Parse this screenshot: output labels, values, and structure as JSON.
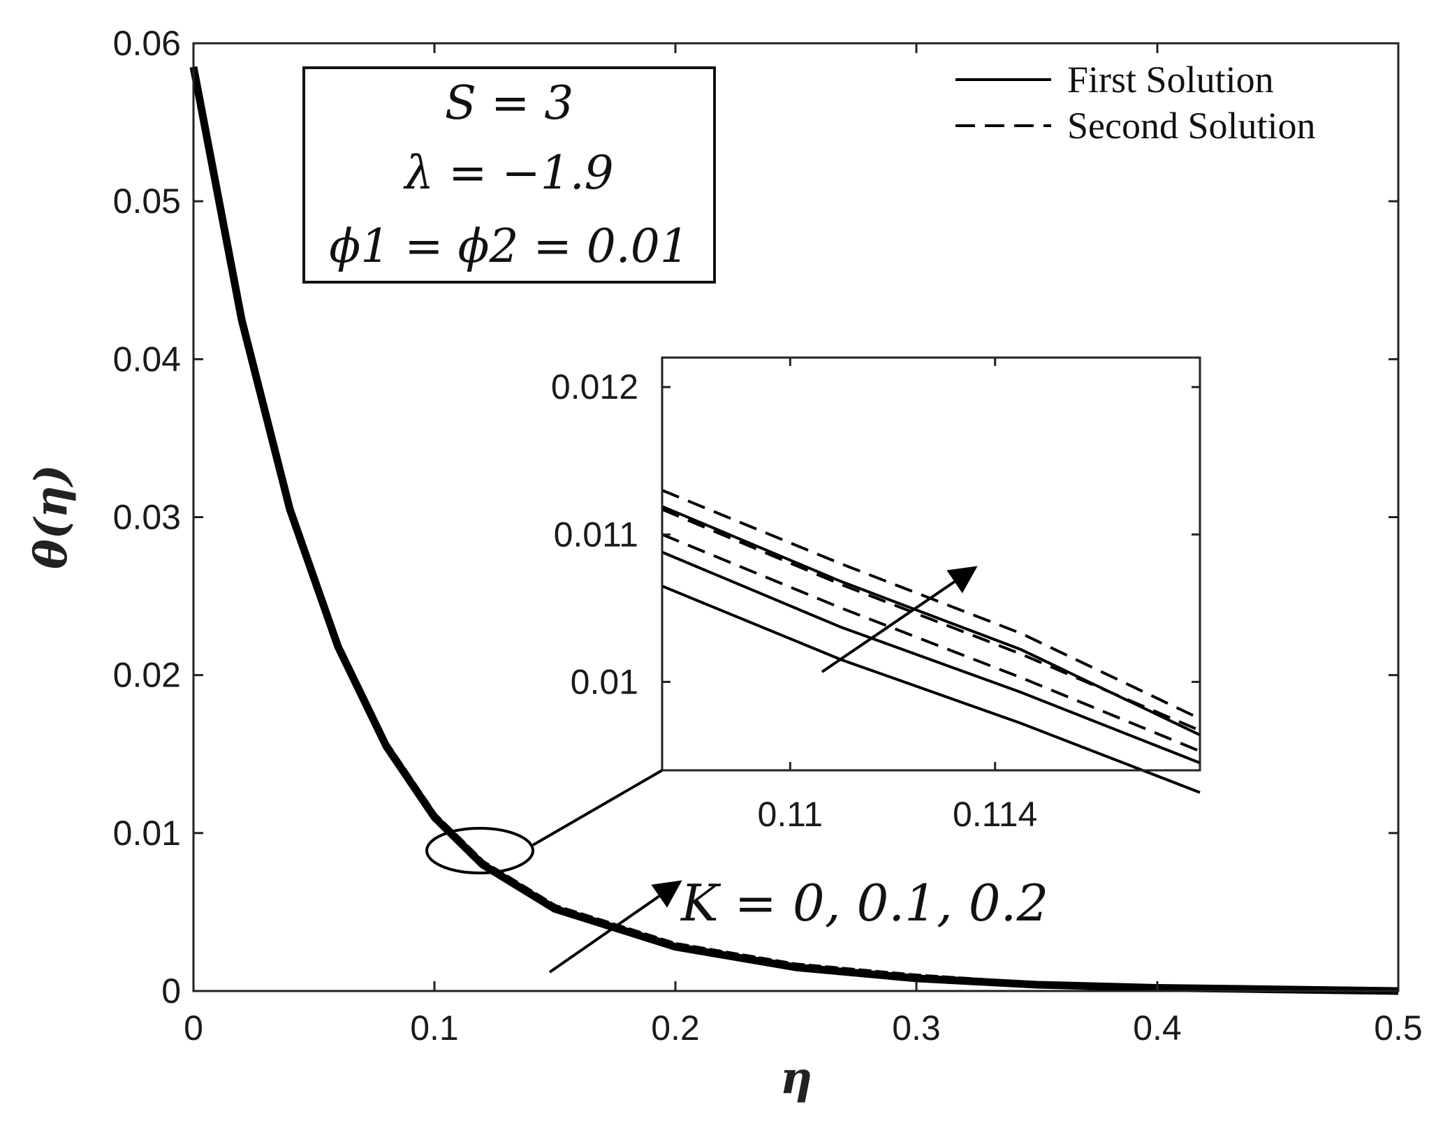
{
  "chart_data": {
    "type": "line",
    "title": "",
    "xlabel": "η",
    "ylabel": "θ(η)",
    "xlim": [
      0,
      0.5
    ],
    "ylim": [
      0,
      0.06
    ],
    "x_ticks": [
      "0",
      "0.1",
      "0.2",
      "0.3",
      "0.4",
      "0.5"
    ],
    "y_ticks": [
      "0",
      "0.01",
      "0.02",
      "0.03",
      "0.04",
      "0.05",
      "0.06"
    ],
    "legend": {
      "placement": "top-right",
      "entries": [
        {
          "label": "First Solution",
          "style": "solid"
        },
        {
          "label": "Second Solution",
          "style": "dashed"
        }
      ]
    },
    "parameter_box": [
      "S = 3",
      "λ = −1.9",
      "ϕ1 = ϕ2 = 0.01"
    ],
    "annotation": "K = 0, 0.1, 0.2",
    "x": [
      0,
      0.02,
      0.04,
      0.06,
      0.08,
      0.1,
      0.12,
      0.15,
      0.2,
      0.25,
      0.3,
      0.35,
      0.4,
      0.45,
      0.5
    ],
    "series": [
      {
        "style": "solid",
        "values": [
          0.0585,
          0.0425,
          0.0305,
          0.0218,
          0.0155,
          0.011,
          0.008,
          0.0052,
          0.0028,
          0.0015,
          0.0008,
          0.0004,
          0.0002,
          0.0001,
          0.0
        ]
      },
      {
        "style": "dashed",
        "values": [
          0.0585,
          0.0426,
          0.0306,
          0.0219,
          0.0156,
          0.0111,
          0.0081,
          0.0053,
          0.0029,
          0.0016,
          0.0009,
          0.0004,
          0.0002,
          0.0001,
          0.0
        ]
      }
    ],
    "inset": {
      "xlim": [
        0.1075,
        0.118
      ],
      "ylim": [
        0.0094,
        0.0122
      ],
      "x_ticks": [
        "0.11",
        "0.114"
      ],
      "y_ticks": [
        "0.01",
        "0.011",
        "0.012"
      ],
      "x_tick_values": [
        0.11,
        0.114
      ],
      "y_tick_values": [
        0.01,
        0.011,
        0.012
      ],
      "series": [
        {
          "style": "solid",
          "x": [
            0.1075,
            0.111,
            0.1145,
            0.118
          ],
          "values": [
            0.01065,
            0.01015,
            0.00972,
            0.00925
          ]
        },
        {
          "style": "solid",
          "x": [
            0.1075,
            0.111,
            0.1145,
            0.118
          ],
          "values": [
            0.01088,
            0.01037,
            0.00993,
            0.00945
          ]
        },
        {
          "style": "solid",
          "x": [
            0.1075,
            0.111,
            0.1145,
            0.118
          ],
          "values": [
            0.01119,
            0.01068,
            0.01022,
            0.00964
          ]
        },
        {
          "style": "dashed",
          "x": [
            0.1075,
            0.111,
            0.1145,
            0.118
          ],
          "values": [
            0.011,
            0.0105,
            0.01003,
            0.00953
          ]
        },
        {
          "style": "dashed",
          "x": [
            0.1075,
            0.111,
            0.1145,
            0.118
          ],
          "values": [
            0.01117,
            0.01066,
            0.01019,
            0.00967
          ]
        },
        {
          "style": "dashed",
          "x": [
            0.1075,
            0.111,
            0.1145,
            0.118
          ],
          "values": [
            0.0113,
            0.0108,
            0.01033,
            0.00975
          ]
        }
      ]
    }
  }
}
